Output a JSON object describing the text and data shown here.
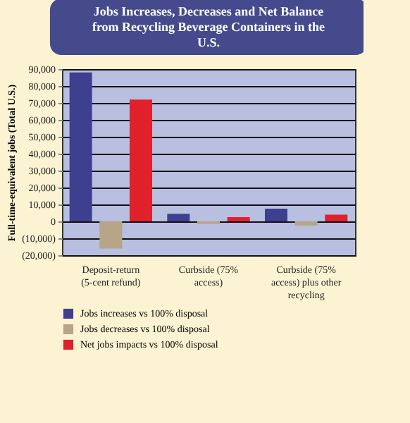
{
  "chart_data": {
    "type": "bar",
    "title": "Jobs Increases, Decreases and Net Balance from Recycling Beverage Containers in the U.S.",
    "ylabel": "Full-time-equivalent jobs (Total U.S.)",
    "categories": [
      "Deposit-return (5-cent refund)",
      "Curbside (75% access)",
      "Curbside (75% access) plus other recycling"
    ],
    "series": [
      {
        "name": "Jobs increases vs 100% disposal",
        "color": "#3f3f8f",
        "values": [
          88000,
          4500,
          7500
        ]
      },
      {
        "name": "Jobs decreases vs 100% disposal",
        "color": "#b8a486",
        "values": [
          -16000,
          -1500,
          -2500
        ]
      },
      {
        "name": "Net jobs impacts vs 100% disposal",
        "color": "#e0202a",
        "values": [
          72000,
          2500,
          4000
        ]
      }
    ],
    "ylim": [
      -20000,
      90000
    ],
    "yticks": [
      {
        "value": -20000,
        "label": "(20,000)"
      },
      {
        "value": -10000,
        "label": "(10,000)"
      },
      0,
      {
        "value": 10000,
        "label": "10,000"
      },
      {
        "value": 20000,
        "label": "20,000"
      },
      {
        "value": 30000,
        "label": "30,000"
      },
      {
        "value": 40000,
        "label": "40,000"
      },
      {
        "value": 50000,
        "label": "50,000"
      },
      {
        "value": 60000,
        "label": "60,000"
      },
      {
        "value": 70000,
        "label": "70,000"
      },
      {
        "value": 80000,
        "label": "80,000"
      },
      {
        "value": 90000,
        "label": "90,000"
      }
    ],
    "grid": "y",
    "legend": "bottom"
  }
}
